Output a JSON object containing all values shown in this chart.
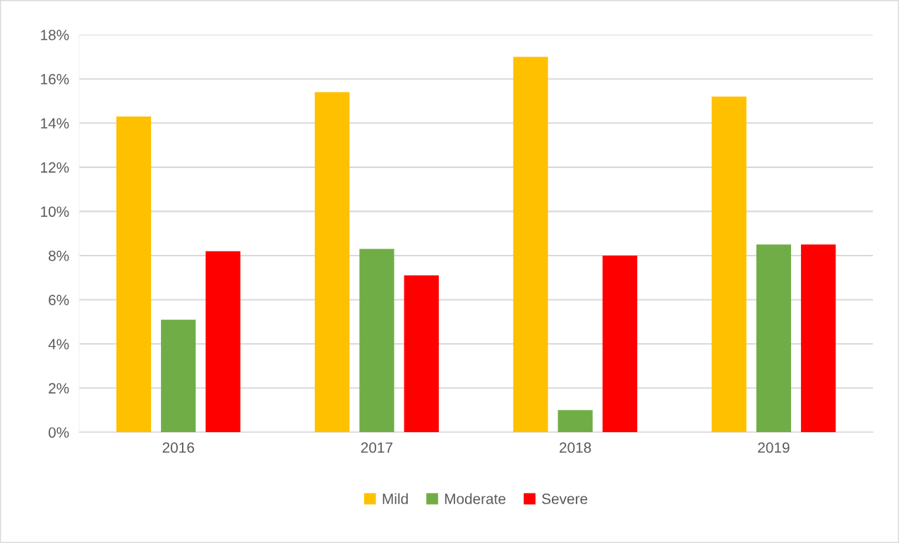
{
  "chart_data": {
    "type": "bar",
    "categories": [
      "2016",
      "2017",
      "2018",
      "2019"
    ],
    "series": [
      {
        "name": "Mild",
        "color": "#ffc000",
        "values": [
          14.3,
          15.4,
          17.0,
          15.2
        ]
      },
      {
        "name": "Moderate",
        "color": "#70ad47",
        "values": [
          5.1,
          8.3,
          1.0,
          8.5
        ]
      },
      {
        "name": "Severe",
        "color": "#ff0000",
        "values": [
          8.2,
          7.1,
          8.0,
          8.5
        ]
      }
    ],
    "ylim": [
      0,
      18
    ],
    "yticks": [
      {
        "value": 0,
        "label": "0%"
      },
      {
        "value": 2,
        "label": "2%"
      },
      {
        "value": 4,
        "label": "4%"
      },
      {
        "value": 6,
        "label": "6%"
      },
      {
        "value": 8,
        "label": "8%"
      },
      {
        "value": 10,
        "label": "10%"
      },
      {
        "value": 12,
        "label": "12%"
      },
      {
        "value": 14,
        "label": "14%"
      },
      {
        "value": 16,
        "label": "16%"
      },
      {
        "value": 18,
        "label": "18%"
      }
    ],
    "grid": "y",
    "legend": "bottom"
  }
}
